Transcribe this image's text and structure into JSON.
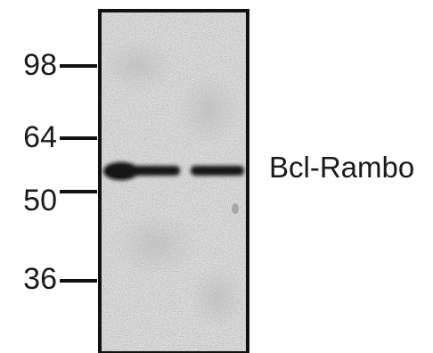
{
  "blot": {
    "lanes": 2,
    "band_color": "#0d0d0d",
    "membrane_color": "#d9d9d9"
  },
  "markers": [
    {
      "label": "98"
    },
    {
      "label": "64"
    },
    {
      "label": "50"
    },
    {
      "label": "36"
    }
  ],
  "band_label": "Bcl-Rambo"
}
